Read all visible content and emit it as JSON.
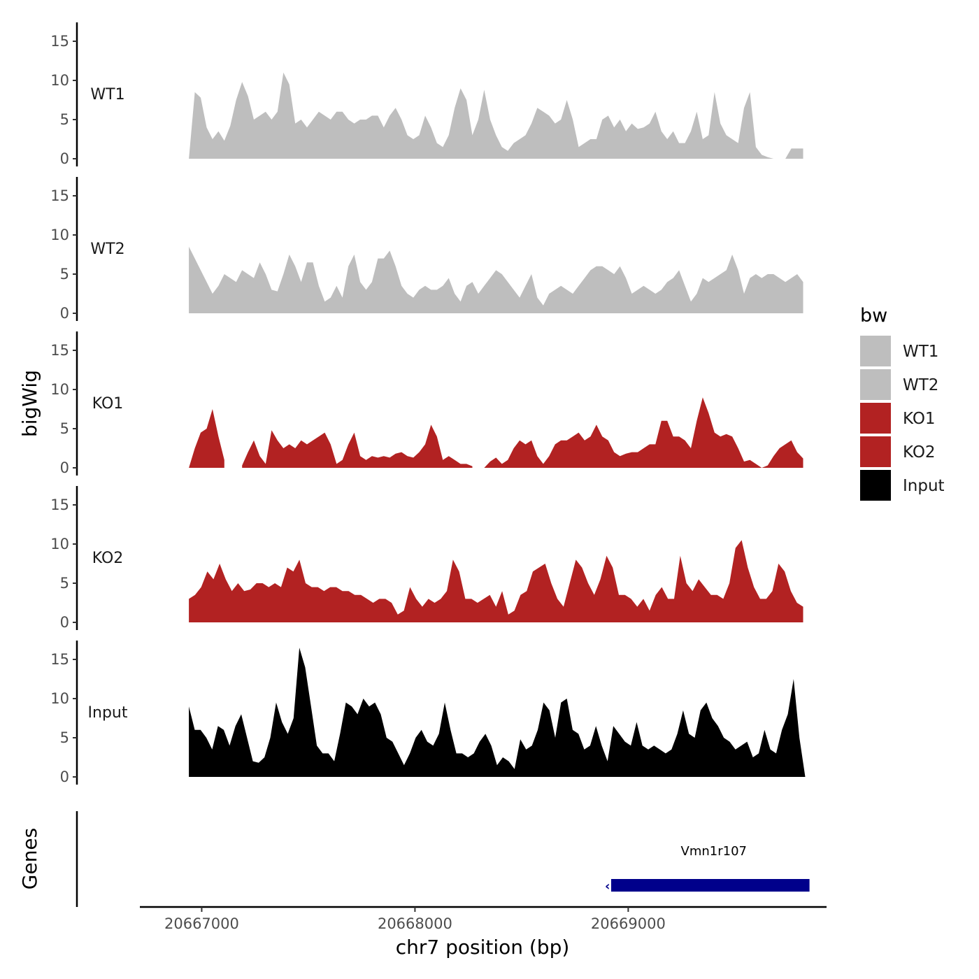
{
  "chart_data": {
    "type": "area",
    "y_axis_title": "bigWig",
    "genes_axis_title": "Genes",
    "x_axis_title": "chr7 position (bp)",
    "x_ticks": [
      20667000,
      20668000,
      20669000
    ],
    "x_range": [
      20666710,
      20669930
    ],
    "y_ticks": [
      0,
      5,
      10,
      15
    ],
    "y_range": [
      0,
      17.5
    ],
    "legend": {
      "title": "bw",
      "position": "right",
      "entries": [
        {
          "label": "WT1",
          "color": "#BEBEBE"
        },
        {
          "label": "WT2",
          "color": "#BEBEBE"
        },
        {
          "label": "KO1",
          "color": "#B22222"
        },
        {
          "label": "KO2",
          "color": "#B22222"
        },
        {
          "label": "Input",
          "color": "#000000"
        }
      ]
    },
    "tracks": [
      {
        "name": "WT1",
        "color": "#BEBEBE",
        "start": 20666940,
        "end": 20669820,
        "values": [
          0.0,
          8.5,
          7.8,
          4.0,
          2.5,
          3.5,
          2.3,
          4.2,
          7.5,
          9.8,
          8.0,
          5.0,
          5.5,
          6.0,
          5.0,
          6.0,
          11.0,
          9.5,
          4.5,
          5.0,
          4.0,
          5.0,
          6.0,
          5.5,
          5.0,
          6.0,
          6.0,
          5.0,
          4.5,
          5.0,
          5.0,
          5.5,
          5.5,
          4.0,
          5.5,
          6.5,
          5.0,
          3.0,
          2.5,
          3.0,
          5.5,
          4.0,
          2.0,
          1.5,
          3.0,
          6.5,
          9.0,
          7.5,
          3.0,
          5.0,
          8.8,
          5.0,
          3.0,
          1.5,
          1.0,
          2.0,
          2.5,
          3.0,
          4.5,
          6.5,
          6.0,
          5.5,
          4.5,
          5.0,
          7.5,
          5.0,
          1.5,
          2.0,
          2.5,
          2.5,
          5.0,
          5.5,
          4.0,
          5.0,
          3.5,
          4.5,
          3.8,
          4.0,
          4.5,
          6.0,
          3.5,
          2.5,
          3.5,
          2.0,
          2.0,
          3.5,
          6.0,
          2.5,
          3.0,
          8.5,
          4.5,
          3.0,
          2.5,
          2.0,
          6.5,
          8.5,
          1.5,
          0.5,
          0.2,
          0.0,
          null,
          0.0,
          1.3,
          1.3,
          1.3
        ]
      },
      {
        "name": "WT2",
        "color": "#BEBEBE",
        "start": 20666940,
        "end": 20669820,
        "values": [
          8.5,
          7.0,
          5.5,
          4.0,
          2.5,
          3.5,
          5.0,
          4.5,
          4.0,
          5.5,
          5.0,
          4.5,
          6.5,
          5.0,
          3.0,
          2.8,
          5.0,
          7.5,
          6.0,
          4.0,
          6.5,
          6.5,
          3.5,
          1.5,
          2.0,
          3.5,
          2.0,
          6.0,
          7.5,
          4.0,
          3.0,
          4.0,
          7.0,
          7.0,
          8.0,
          6.0,
          3.5,
          2.5,
          2.0,
          3.0,
          3.5,
          3.0,
          3.0,
          3.5,
          4.5,
          2.5,
          1.5,
          3.5,
          4.0,
          2.5,
          3.5,
          4.5,
          5.5,
          5.0,
          4.0,
          3.0,
          2.0,
          3.5,
          5.0,
          2.0,
          1.0,
          2.5,
          3.0,
          3.5,
          3.0,
          2.5,
          3.5,
          4.5,
          5.5,
          6.0,
          6.0,
          5.5,
          5.0,
          6.0,
          4.5,
          2.5,
          3.0,
          3.5,
          3.0,
          2.5,
          3.0,
          4.0,
          4.5,
          5.5,
          3.5,
          1.5,
          2.5,
          4.5,
          4.0,
          4.5,
          5.0,
          5.5,
          7.5,
          5.5,
          2.5,
          4.5,
          5.0,
          4.5,
          5.0,
          5.0,
          4.5,
          4.0,
          4.5,
          5.0,
          4.0
        ]
      },
      {
        "name": "KO1",
        "color": "#B22222",
        "start": 20666940,
        "end": 20669820,
        "values": [
          0.0,
          2.5,
          4.5,
          5.0,
          7.5,
          4.0,
          1.0,
          null,
          null,
          0.3,
          2.0,
          3.5,
          1.5,
          0.5,
          4.8,
          3.5,
          2.5,
          3.0,
          2.5,
          3.5,
          3.0,
          3.5,
          4.0,
          4.5,
          3.0,
          0.5,
          1.0,
          3.0,
          4.5,
          1.5,
          1.0,
          1.5,
          1.3,
          1.5,
          1.3,
          1.8,
          2.0,
          1.5,
          1.3,
          2.0,
          3.0,
          5.5,
          4.0,
          1.0,
          1.5,
          1.0,
          0.5,
          0.5,
          0.2,
          null,
          0.0,
          0.8,
          1.3,
          0.5,
          1.0,
          2.5,
          3.5,
          3.0,
          3.5,
          1.5,
          0.5,
          1.5,
          3.0,
          3.5,
          3.5,
          4.0,
          4.5,
          3.5,
          4.0,
          5.5,
          4.0,
          3.5,
          2.0,
          1.5,
          1.8,
          2.0,
          2.0,
          2.5,
          3.0,
          3.0,
          6.0,
          6.0,
          4.0,
          4.0,
          3.5,
          2.5,
          6.0,
          9.0,
          7.0,
          4.5,
          4.0,
          4.3,
          4.0,
          2.5,
          0.8,
          1.0,
          0.5,
          0.0,
          0.3,
          1.5,
          2.5,
          3.0,
          3.5,
          2.0,
          1.2
        ]
      },
      {
        "name": "KO2",
        "color": "#B22222",
        "start": 20666940,
        "end": 20669820,
        "values": [
          3.0,
          3.5,
          4.5,
          6.5,
          5.5,
          7.5,
          5.5,
          4.0,
          5.0,
          4.0,
          4.2,
          5.0,
          5.0,
          4.5,
          5.0,
          4.5,
          7.0,
          6.5,
          8.0,
          5.0,
          4.5,
          4.5,
          4.0,
          4.5,
          4.5,
          4.0,
          4.0,
          3.5,
          3.5,
          3.0,
          2.5,
          3.0,
          3.0,
          2.5,
          1.0,
          1.5,
          4.5,
          3.0,
          2.0,
          3.0,
          2.5,
          3.0,
          4.0,
          8.0,
          6.5,
          3.0,
          3.0,
          2.5,
          3.0,
          3.5,
          2.0,
          4.0,
          1.0,
          1.5,
          3.5,
          4.0,
          6.5,
          7.0,
          7.5,
          5.0,
          3.0,
          2.0,
          5.0,
          8.0,
          7.0,
          5.0,
          3.5,
          5.5,
          8.5,
          7.0,
          3.5,
          3.5,
          3.0,
          2.0,
          3.0,
          1.5,
          3.5,
          4.5,
          3.0,
          3.0,
          8.5,
          5.0,
          4.0,
          5.5,
          4.5,
          3.5,
          3.5,
          3.0,
          5.0,
          9.5,
          10.5,
          7.0,
          4.5,
          3.0,
          3.0,
          4.0,
          7.5,
          6.5,
          4.0,
          2.5,
          2.0
        ]
      },
      {
        "name": "Input",
        "color": "#000000",
        "start": 20666940,
        "end": 20669830,
        "values": [
          9.0,
          6.0,
          6.0,
          5.0,
          3.5,
          6.5,
          6.0,
          4.0,
          6.5,
          8.0,
          5.0,
          2.0,
          1.8,
          2.5,
          5.0,
          9.5,
          7.0,
          5.5,
          7.5,
          16.5,
          14.0,
          9.0,
          4.0,
          3.0,
          3.0,
          2.0,
          5.5,
          9.5,
          9.0,
          8.0,
          10.0,
          9.0,
          9.5,
          8.0,
          5.0,
          4.5,
          3.0,
          1.5,
          3.0,
          5.0,
          6.0,
          4.5,
          4.0,
          5.5,
          9.5,
          6.0,
          3.0,
          3.0,
          2.5,
          3.0,
          4.5,
          5.5,
          4.0,
          1.5,
          2.5,
          2.0,
          1.0,
          4.8,
          3.5,
          4.0,
          6.0,
          9.5,
          8.5,
          5.0,
          9.5,
          10.0,
          6.0,
          5.5,
          3.5,
          4.0,
          6.5,
          4.0,
          2.0,
          6.5,
          5.5,
          4.5,
          4.0,
          7.0,
          4.0,
          3.5,
          4.0,
          3.5,
          3.0,
          3.5,
          5.5,
          8.5,
          5.5,
          5.0,
          8.5,
          9.5,
          7.5,
          6.5,
          5.0,
          4.5,
          3.5,
          4.0,
          4.5,
          2.5,
          3.0,
          6.0,
          3.5,
          3.0,
          6.0,
          8.0,
          12.5,
          5.0,
          0.0
        ]
      }
    ],
    "genes": [
      {
        "name": "Vmn1r107",
        "start": 20668920,
        "end": 20669850,
        "strand": "-",
        "color": "#00008B"
      }
    ]
  }
}
